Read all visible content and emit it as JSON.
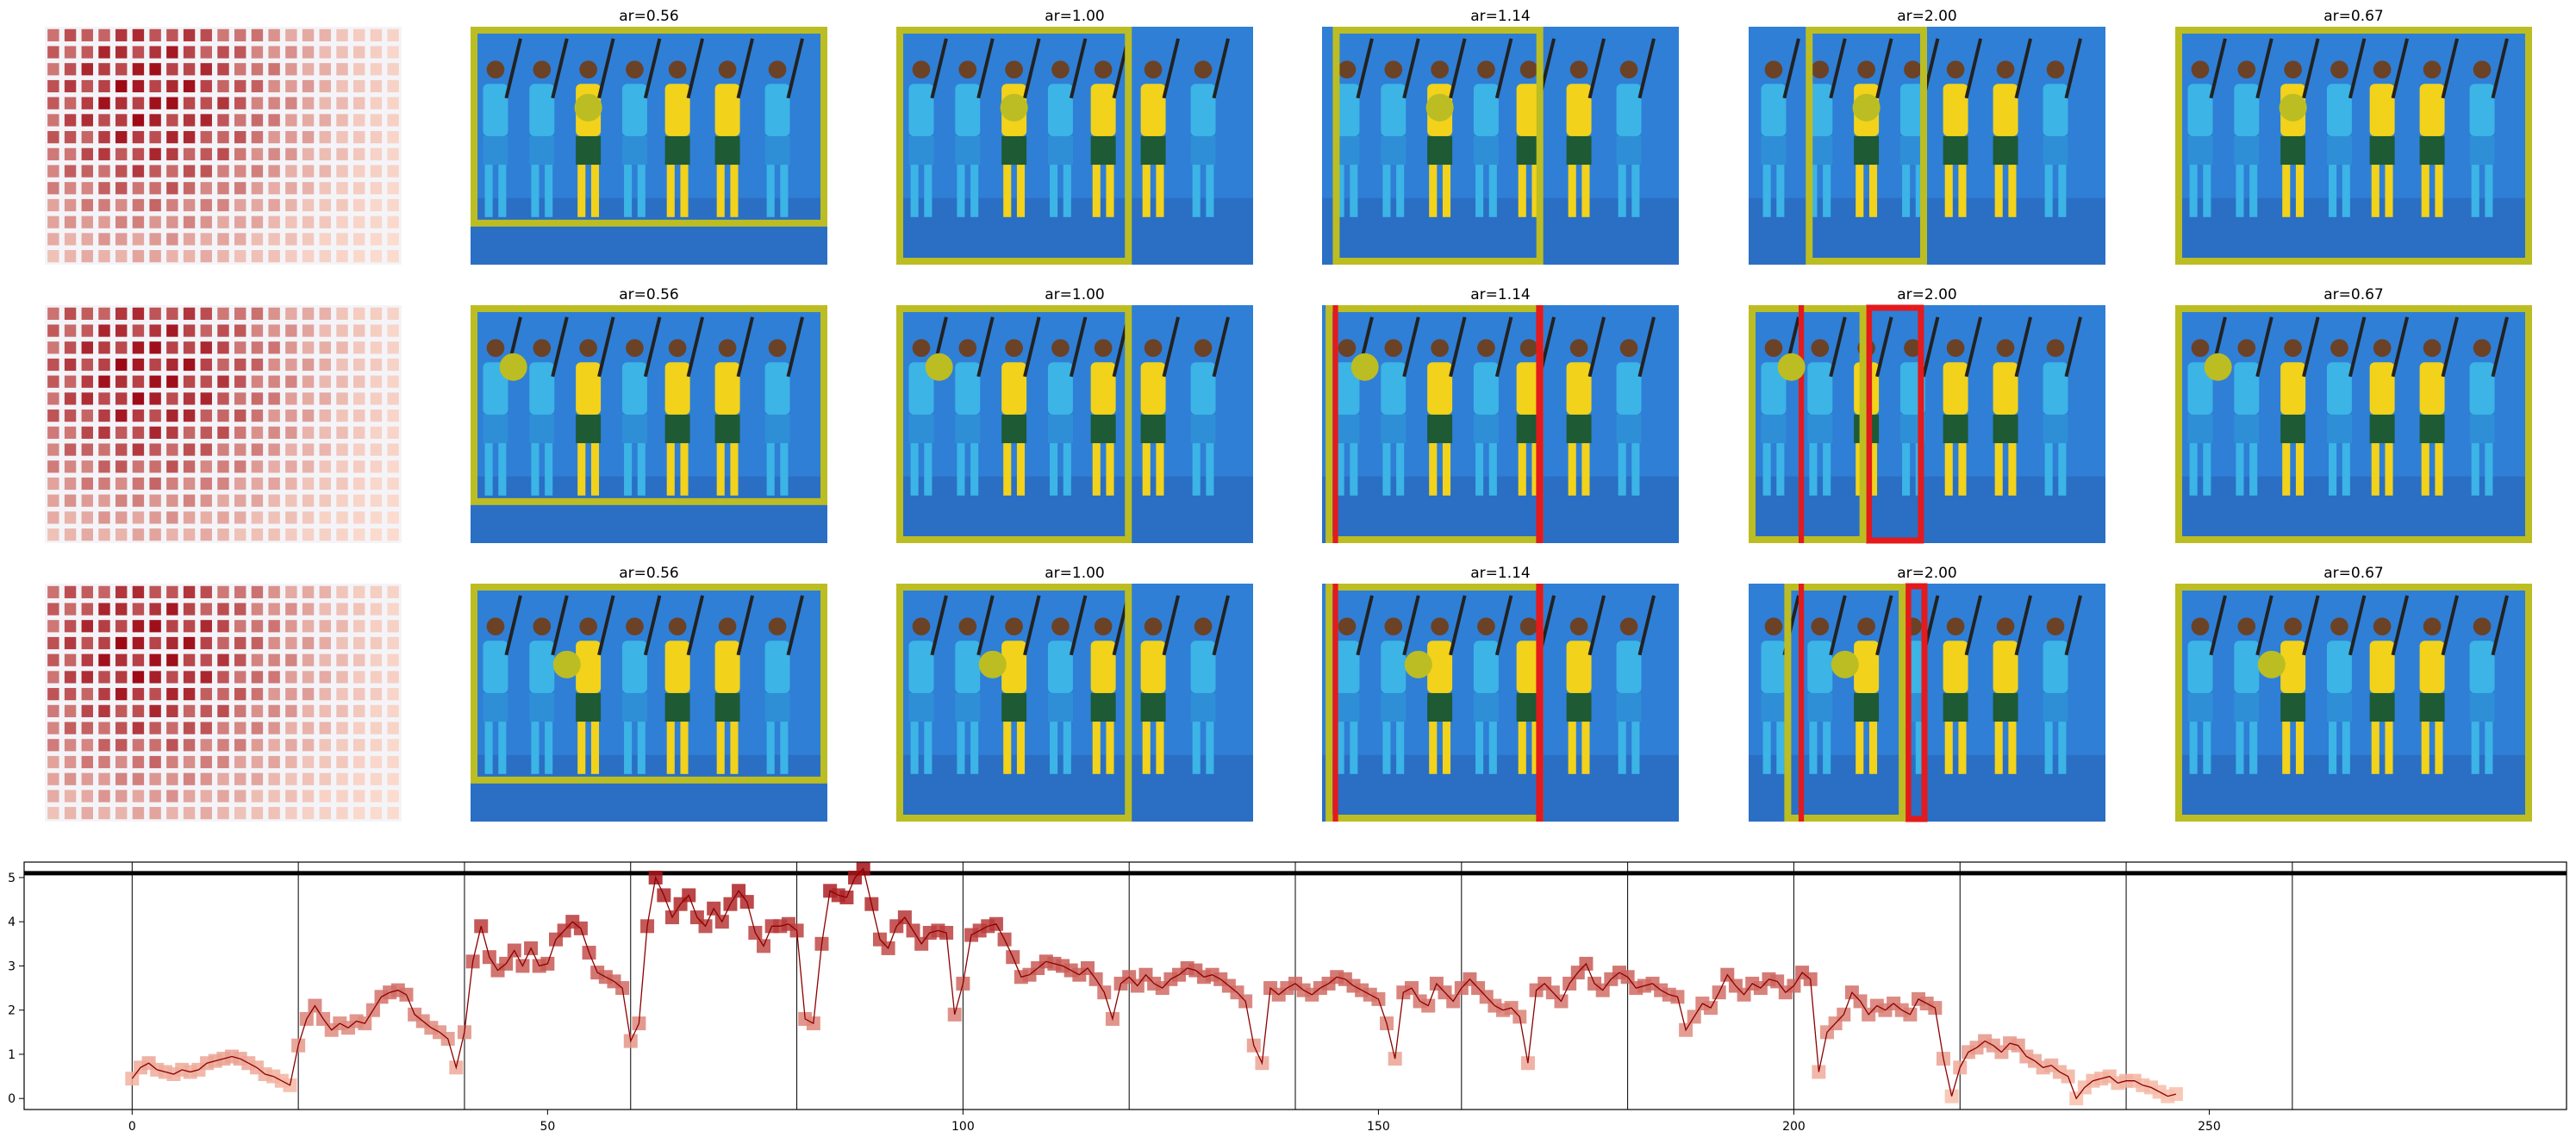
{
  "colors": {
    "box_yellow": "#bcbd22",
    "box_red": "#e41a1c",
    "background_blue": "#2f7fd6",
    "heat_low": "#fde0d2",
    "heat_high": "#99000d",
    "line": "#8b0000"
  },
  "grid_rows": [
    {
      "panels": [
        {
          "title": ""
        },
        {
          "title": "ar=0.56"
        },
        {
          "title": "ar=1.00"
        },
        {
          "title": "ar=1.14"
        },
        {
          "title": "ar=2.00"
        },
        {
          "title": "ar=0.67"
        }
      ]
    },
    {
      "panels": [
        {
          "title": ""
        },
        {
          "title": "ar=0.56"
        },
        {
          "title": "ar=1.00"
        },
        {
          "title": "ar=1.14"
        },
        {
          "title": "ar=2.00"
        },
        {
          "title": "ar=0.67"
        }
      ]
    },
    {
      "panels": [
        {
          "title": ""
        },
        {
          "title": "ar=0.56"
        },
        {
          "title": "ar=1.00"
        },
        {
          "title": "ar=1.14"
        },
        {
          "title": "ar=2.00"
        },
        {
          "title": "ar=0.67"
        }
      ]
    }
  ],
  "chart_data": {
    "type": "line",
    "title": "",
    "xlabel": "",
    "ylabel": "",
    "xlim": [
      -13,
      293
    ],
    "ylim": [
      -0.25,
      5.35
    ],
    "x_ticks": [
      0,
      50,
      100,
      150,
      200,
      250
    ],
    "y_ticks": [
      0,
      1,
      2,
      3,
      4,
      5
    ],
    "vertical_lines": [
      0,
      20,
      40,
      60,
      80,
      100,
      120,
      140,
      160,
      180,
      200,
      220,
      240,
      260
    ],
    "horizontal_line": 5.1,
    "grid": false,
    "series": [
      {
        "x_start": 0,
        "values": [
          0.45,
          0.7,
          0.8,
          0.65,
          0.6,
          0.55,
          0.65,
          0.6,
          0.65,
          0.8,
          0.85,
          0.9,
          0.95,
          0.9,
          0.8,
          0.7,
          0.55,
          0.5,
          0.4,
          0.3,
          1.2,
          1.8,
          2.1,
          1.8,
          1.55,
          1.7,
          1.6,
          1.75,
          1.7,
          2.0,
          2.3,
          2.4,
          2.45,
          2.35,
          1.9,
          1.75,
          1.6,
          1.5,
          1.35,
          0.7,
          1.5,
          3.1,
          3.9,
          3.2,
          2.9,
          3.05,
          3.35,
          3.0,
          3.4,
          3.0,
          3.05,
          3.6,
          3.8,
          4.0,
          3.85,
          3.3,
          2.85,
          2.75,
          2.65,
          2.5,
          1.3,
          1.7,
          3.9,
          5.0,
          4.6,
          4.1,
          4.4,
          4.6,
          4.1,
          3.9,
          4.3,
          4.0,
          4.4,
          4.7,
          4.45,
          3.75,
          3.45,
          3.9,
          3.9,
          3.95,
          3.8,
          1.8,
          1.7,
          3.5,
          4.7,
          4.6,
          4.55,
          5.0,
          5.2,
          4.4,
          3.6,
          3.4,
          3.9,
          4.1,
          3.8,
          3.5,
          3.75,
          3.8,
          3.75,
          1.9,
          2.6,
          3.7,
          3.8,
          3.9,
          3.95,
          3.6,
          3.2,
          2.75,
          2.8,
          2.95,
          3.1,
          3.05,
          3.0,
          2.9,
          2.8,
          2.95,
          2.7,
          2.4,
          1.8,
          2.6,
          2.75,
          2.55,
          2.8,
          2.6,
          2.5,
          2.7,
          2.8,
          2.95,
          2.9,
          2.75,
          2.8,
          2.7,
          2.55,
          2.4,
          2.2,
          1.2,
          0.8,
          2.5,
          2.35,
          2.5,
          2.6,
          2.45,
          2.35,
          2.5,
          2.6,
          2.75,
          2.7,
          2.55,
          2.45,
          2.35,
          2.25,
          1.7,
          0.9,
          2.4,
          2.5,
          2.2,
          2.1,
          2.6,
          2.4,
          2.2,
          2.5,
          2.7,
          2.5,
          2.3,
          2.1,
          2.0,
          2.05,
          1.85,
          0.8,
          2.45,
          2.6,
          2.4,
          2.2,
          2.6,
          2.85,
          3.05,
          2.6,
          2.45,
          2.7,
          2.85,
          2.75,
          2.5,
          2.55,
          2.6,
          2.45,
          2.35,
          2.3,
          1.55,
          1.85,
          2.15,
          2.05,
          2.4,
          2.8,
          2.55,
          2.35,
          2.6,
          2.5,
          2.7,
          2.65,
          2.4,
          2.55,
          2.85,
          2.7,
          0.6,
          1.5,
          1.7,
          1.9,
          2.4,
          2.2,
          1.9,
          2.1,
          2.0,
          2.15,
          2.0,
          1.9,
          2.25,
          2.15,
          2.05,
          0.9,
          0.05,
          0.7,
          1.05,
          1.15,
          1.3,
          1.2,
          1.05,
          1.25,
          1.2,
          0.95,
          0.85,
          0.7,
          0.75,
          0.6,
          0.5,
          0.0,
          0.25,
          0.4,
          0.45,
          0.5,
          0.35,
          0.4,
          0.4,
          0.3,
          0.25,
          0.15,
          0.05,
          0.1
        ]
      }
    ]
  }
}
